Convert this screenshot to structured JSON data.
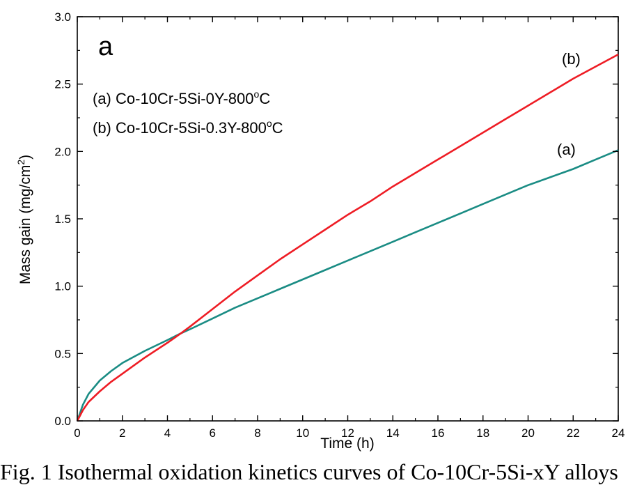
{
  "chart_data": {
    "type": "line",
    "panel_label": "a",
    "title": "",
    "xlabel": "Time (h)",
    "ylabel_main": "Mass gain (mg/cm",
    "ylabel_sup": "2",
    "ylabel_tail": ")",
    "xlim": [
      0,
      24
    ],
    "ylim": [
      0,
      3.0
    ],
    "x_ticks": [
      "0",
      "2",
      "4",
      "6",
      "8",
      "10",
      "12",
      "14",
      "16",
      "18",
      "20",
      "22",
      "24"
    ],
    "y_ticks": [
      "0.0",
      "0.5",
      "1.0",
      "1.5",
      "2.0",
      "2.5",
      "3.0"
    ],
    "legend": [
      {
        "main": "(a) Co-10Cr-5Si-0Y-800",
        "sup": "o",
        "tail": "C"
      },
      {
        "main": "(b) Co-10Cr-5Si-0.3Y-800",
        "sup": "o",
        "tail": "C"
      }
    ],
    "series": [
      {
        "name": "(a)",
        "color": "#1a8c84",
        "x": [
          0,
          0.25,
          0.5,
          1,
          1.5,
          2,
          3,
          4,
          4.6,
          5,
          6,
          7,
          8,
          9,
          10,
          11,
          12,
          13,
          14,
          15,
          16,
          17,
          18,
          19,
          20,
          21,
          22,
          23,
          24
        ],
        "y": [
          0,
          0.12,
          0.2,
          0.3,
          0.37,
          0.43,
          0.52,
          0.6,
          0.65,
          0.68,
          0.76,
          0.84,
          0.91,
          0.98,
          1.05,
          1.12,
          1.19,
          1.26,
          1.33,
          1.4,
          1.47,
          1.54,
          1.61,
          1.68,
          1.75,
          1.81,
          1.87,
          1.94,
          2.01
        ]
      },
      {
        "name": "(b)",
        "color": "#ee1c24",
        "x": [
          0,
          0.25,
          0.5,
          1,
          1.5,
          2,
          3,
          4,
          4.6,
          5,
          6,
          7,
          8,
          9,
          10,
          11,
          12,
          13,
          14,
          15,
          16,
          17,
          18,
          19,
          20,
          21,
          22,
          23,
          24
        ],
        "y": [
          0,
          0.08,
          0.14,
          0.22,
          0.29,
          0.35,
          0.47,
          0.58,
          0.65,
          0.7,
          0.83,
          0.96,
          1.08,
          1.2,
          1.31,
          1.42,
          1.53,
          1.63,
          1.74,
          1.84,
          1.94,
          2.04,
          2.14,
          2.24,
          2.34,
          2.44,
          2.54,
          2.63,
          2.72
        ]
      }
    ]
  },
  "caption": "Fig. 1 Isothermal oxidation kinetics curves of Co-10Cr-5Si-xY alloys"
}
